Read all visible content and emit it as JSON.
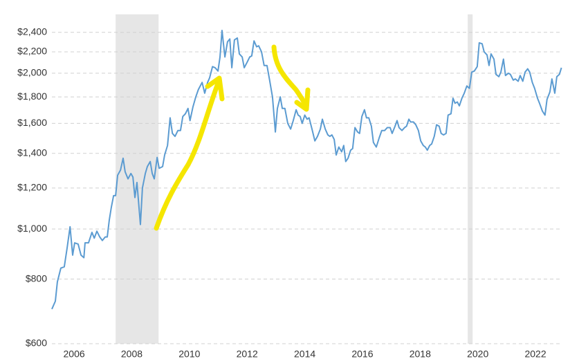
{
  "chart_data": {
    "type": "line",
    "log_y": true,
    "grid": true,
    "xlim": [
      2005.23,
      2022.91
    ],
    "ylim": [
      600,
      2600
    ],
    "xticks": [
      2006,
      2008,
      2010,
      2012,
      2014,
      2016,
      2018,
      2020,
      2022
    ],
    "yticks": [
      {
        "value": 600,
        "label": "$600"
      },
      {
        "value": 800,
        "label": "$800"
      },
      {
        "value": 1000,
        "label": "$1,000"
      },
      {
        "value": 1200,
        "label": "$1,200"
      },
      {
        "value": 1400,
        "label": "$1,400"
      },
      {
        "value": 1600,
        "label": "$1,600"
      },
      {
        "value": 1800,
        "label": "$1,800"
      },
      {
        "value": 2000,
        "label": "$2,000"
      },
      {
        "value": 2200,
        "label": "$2,200"
      },
      {
        "value": 2400,
        "label": "$2,400"
      }
    ],
    "shaded_ranges": [
      [
        2007.44,
        2008.93
      ],
      [
        2019.65,
        2019.82
      ]
    ],
    "shade_color": "#e6e6e6",
    "x": [
      2005.23,
      2005.35,
      2005.42,
      2005.54,
      2005.66,
      2005.76,
      2005.86,
      2005.95,
      2006.02,
      2006.14,
      2006.24,
      2006.34,
      2006.38,
      2006.5,
      2006.62,
      2006.7,
      2006.79,
      2006.89,
      2006.98,
      2007.08,
      2007.15,
      2007.22,
      2007.29,
      2007.37,
      2007.44,
      2007.51,
      2007.61,
      2007.7,
      2007.77,
      2007.87,
      2007.97,
      2008.04,
      2008.11,
      2008.18,
      2008.3,
      2008.37,
      2008.47,
      2008.54,
      2008.64,
      2008.71,
      2008.78,
      2008.88,
      2008.95,
      2009.07,
      2009.14,
      2009.24,
      2009.33,
      2009.41,
      2009.5,
      2009.6,
      2009.69,
      2009.77,
      2009.86,
      2009.95,
      2010.02,
      2010.12,
      2010.22,
      2010.31,
      2010.44,
      2010.53,
      2010.63,
      2010.7,
      2010.8,
      2010.89,
      2010.99,
      2011.06,
      2011.13,
      2011.23,
      2011.32,
      2011.4,
      2011.47,
      2011.56,
      2011.66,
      2011.73,
      2011.83,
      2011.9,
      2012.0,
      2012.09,
      2012.16,
      2012.24,
      2012.33,
      2012.4,
      2012.5,
      2012.59,
      2012.69,
      2012.78,
      2012.88,
      2012.98,
      2013.05,
      2013.15,
      2013.22,
      2013.31,
      2013.41,
      2013.51,
      2013.6,
      2013.7,
      2013.77,
      2013.84,
      2013.91,
      2014.0,
      2014.08,
      2014.15,
      2014.25,
      2014.35,
      2014.44,
      2014.54,
      2014.61,
      2014.71,
      2014.8,
      2014.87,
      2014.94,
      2015.02,
      2015.09,
      2015.18,
      2015.28,
      2015.35,
      2015.42,
      2015.5,
      2015.59,
      2015.66,
      2015.74,
      2015.83,
      2015.9,
      2015.98,
      2016.07,
      2016.14,
      2016.22,
      2016.31,
      2016.38,
      2016.48,
      2016.58,
      2016.67,
      2016.77,
      2016.86,
      2016.96,
      2017.03,
      2017.13,
      2017.2,
      2017.27,
      2017.37,
      2017.46,
      2017.53,
      2017.61,
      2017.67,
      2017.77,
      2017.85,
      2017.94,
      2018.02,
      2018.11,
      2018.18,
      2018.25,
      2018.33,
      2018.4,
      2018.49,
      2018.57,
      2018.66,
      2018.73,
      2018.81,
      2018.9,
      2018.97,
      2019.07,
      2019.14,
      2019.21,
      2019.29,
      2019.36,
      2019.45,
      2019.53,
      2019.62,
      2019.71,
      2019.79,
      2019.88,
      2019.98,
      2020.05,
      2020.15,
      2020.22,
      2020.32,
      2020.39,
      2020.46,
      2020.56,
      2020.63,
      2020.73,
      2020.8,
      2020.89,
      2020.96,
      2021.06,
      2021.13,
      2021.23,
      2021.3,
      2021.4,
      2021.47,
      2021.56,
      2021.64,
      2021.73,
      2021.8,
      2021.89,
      2021.97,
      2022.07,
      2022.14,
      2022.24,
      2022.33,
      2022.4,
      2022.5,
      2022.57,
      2022.67,
      2022.74,
      2022.83,
      2022.9
    ],
    "series": [
      {
        "color": "#5b9bd1",
        "values": [
          700,
          725,
          790,
          840,
          845,
          920,
          1010,
          890,
          940,
          935,
          890,
          880,
          940,
          940,
          985,
          960,
          990,
          965,
          950,
          965,
          965,
          1040,
          1100,
          1160,
          1160,
          1270,
          1300,
          1370,
          1290,
          1250,
          1280,
          1260,
          1150,
          1230,
          1020,
          1200,
          1280,
          1320,
          1350,
          1280,
          1250,
          1375,
          1310,
          1320,
          1390,
          1450,
          1640,
          1530,
          1510,
          1550,
          1550,
          1650,
          1670,
          1710,
          1620,
          1720,
          1800,
          1860,
          1920,
          1830,
          1920,
          1960,
          2060,
          2050,
          2020,
          2150,
          2420,
          2150,
          2300,
          2330,
          2050,
          2320,
          2340,
          2180,
          2150,
          2050,
          2100,
          2150,
          2160,
          2310,
          2250,
          2260,
          2200,
          2070,
          2070,
          1940,
          1800,
          1540,
          1710,
          1800,
          1710,
          1710,
          1600,
          1560,
          1620,
          1700,
          1660,
          1650,
          1600,
          1660,
          1630,
          1640,
          1560,
          1480,
          1510,
          1560,
          1630,
          1560,
          1520,
          1510,
          1520,
          1490,
          1390,
          1440,
          1410,
          1450,
          1350,
          1370,
          1420,
          1430,
          1570,
          1540,
          1530,
          1650,
          1700,
          1640,
          1640,
          1580,
          1470,
          1440,
          1500,
          1550,
          1550,
          1570,
          1570,
          1530,
          1580,
          1620,
          1570,
          1550,
          1570,
          1580,
          1630,
          1610,
          1610,
          1590,
          1550,
          1480,
          1450,
          1440,
          1420,
          1450,
          1460,
          1510,
          1590,
          1580,
          1530,
          1520,
          1530,
          1660,
          1670,
          1790,
          1750,
          1760,
          1730,
          1790,
          1830,
          1890,
          1870,
          2010,
          2020,
          2060,
          2290,
          2280,
          2200,
          2170,
          2070,
          2180,
          2130,
          1990,
          1970,
          2010,
          2130,
          1980,
          2000,
          1990,
          1940,
          1950,
          1930,
          1980,
          1930,
          2010,
          2040,
          2010,
          1920,
          1870,
          1790,
          1750,
          1690,
          1660,
          1780,
          1840,
          1950,
          1830,
          1970,
          1990,
          2050
        ]
      }
    ]
  }
}
